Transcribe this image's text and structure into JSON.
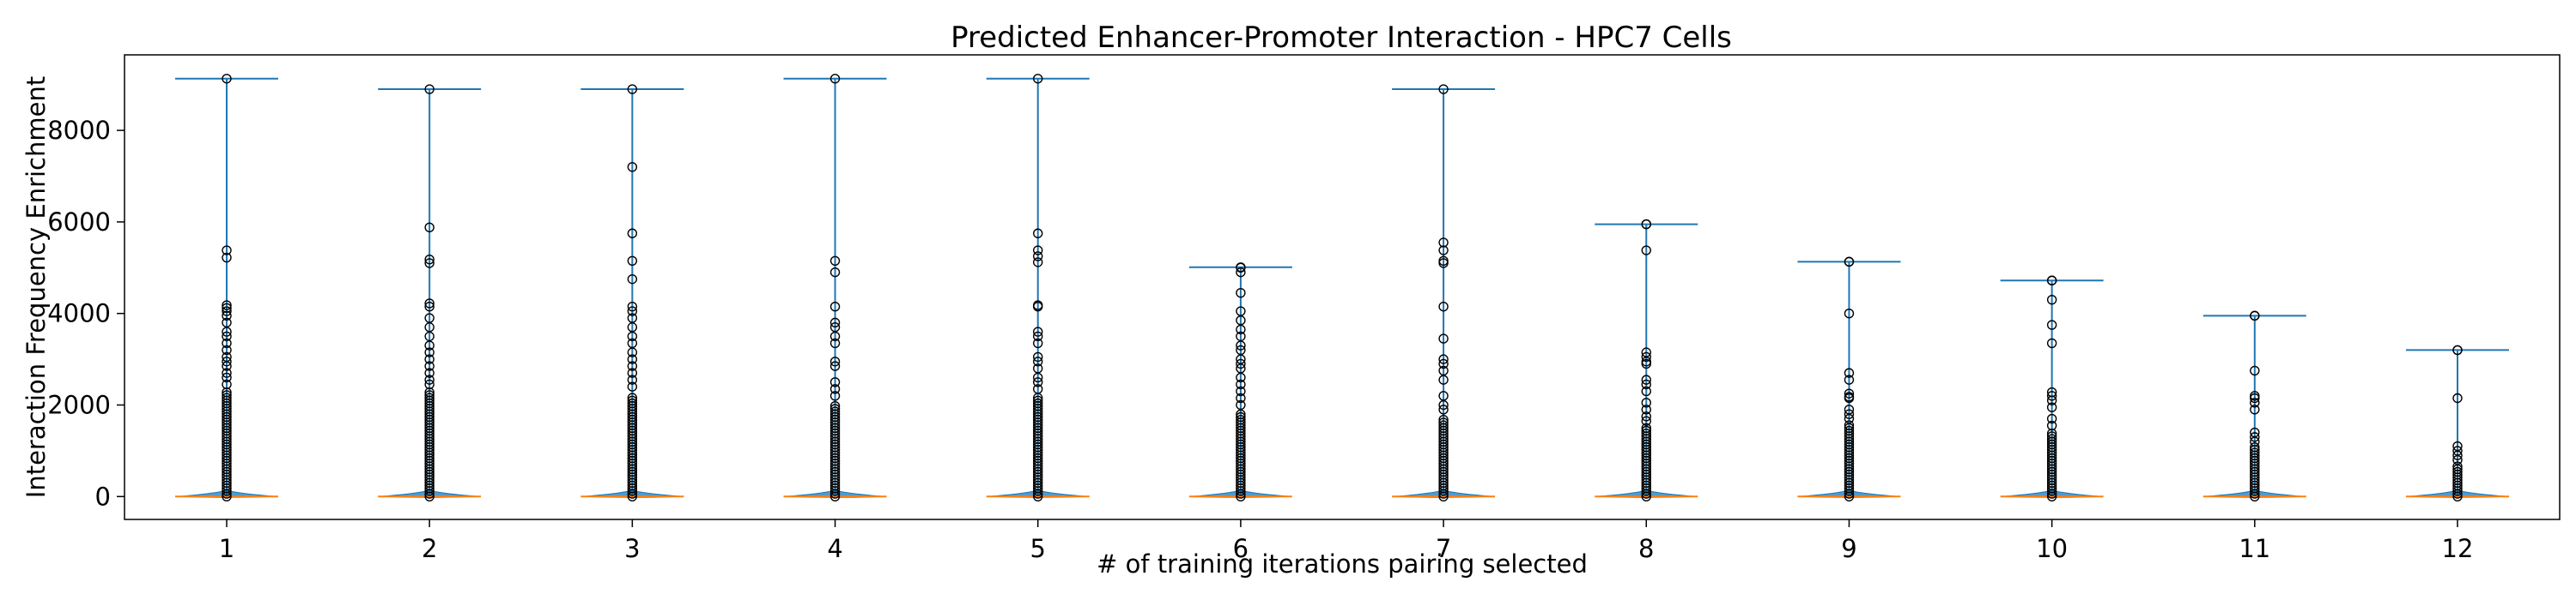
{
  "chart_data": {
    "type": "violin",
    "title": "Predicted Enhancer-Promoter Interaction - HPC7 Cells",
    "xlabel": "# of training iterations pairing selected",
    "ylabel": "Interaction Frequency Enrichment",
    "categories": [
      "1",
      "2",
      "3",
      "4",
      "5",
      "6",
      "7",
      "8",
      "9",
      "10",
      "11",
      "12"
    ],
    "yticks": [
      0,
      2000,
      4000,
      6000,
      8000
    ],
    "ylim": [
      -500,
      9650
    ],
    "grid": false,
    "legend": "none",
    "colors": {
      "violin_body": "#1f77b4",
      "median_line": "#ff7f0e",
      "whisker": "#1f77b4",
      "outlier_edge": "#000000"
    },
    "series": [
      {
        "category": "1",
        "max": 9130,
        "dense_top": 2300,
        "outliers": [
          5380,
          5220,
          4180,
          4120,
          4050,
          3950,
          3800,
          3600,
          3500,
          3350,
          3200,
          3050,
          2950,
          2850,
          2700,
          2600,
          2450
        ]
      },
      {
        "category": "2",
        "max": 8900,
        "dense_top": 2300,
        "outliers": [
          5880,
          5180,
          5100,
          4220,
          4150,
          3900,
          3700,
          3500,
          3300,
          3150,
          3000,
          2850,
          2700,
          2550,
          2450
        ]
      },
      {
        "category": "3",
        "max": 8900,
        "dense_top": 2200,
        "outliers": [
          7200,
          5750,
          5150,
          4750,
          4150,
          4050,
          3900,
          3700,
          3500,
          3350,
          3150,
          3000,
          2850,
          2700,
          2550,
          2400
        ]
      },
      {
        "category": "4",
        "max": 9130,
        "dense_top": 2000,
        "outliers": [
          5150,
          4900,
          4150,
          3800,
          3700,
          3500,
          3350,
          2950,
          2850,
          2500,
          2350,
          2200
        ]
      },
      {
        "category": "5",
        "max": 9130,
        "dense_top": 2200,
        "outliers": [
          5750,
          5380,
          5250,
          5120,
          4180,
          4150,
          3600,
          3500,
          3350,
          3050,
          2950,
          2800,
          2600,
          2500,
          2350
        ]
      },
      {
        "category": "6",
        "max": 5010,
        "dense_top": 1800,
        "outliers": [
          5000,
          4900,
          4450,
          4050,
          3850,
          3650,
          3500,
          3300,
          3200,
          3000,
          2900,
          2800,
          2600,
          2450,
          2300,
          2150,
          2000
        ]
      },
      {
        "category": "7",
        "max": 8900,
        "dense_top": 1700,
        "outliers": [
          5550,
          5380,
          5150,
          5100,
          4150,
          3450,
          3000,
          2900,
          2750,
          2550,
          2200,
          2000,
          1900
        ]
      },
      {
        "category": "8",
        "max": 5950,
        "dense_top": 1500,
        "outliers": [
          5950,
          5380,
          3150,
          3050,
          2950,
          2900,
          2550,
          2450,
          2300,
          2050,
          1900,
          1750,
          1650
        ]
      },
      {
        "category": "9",
        "max": 5130,
        "dense_top": 1600,
        "outliers": [
          5130,
          4000,
          2700,
          2550,
          2250,
          2180,
          2150,
          1900,
          1800,
          1700
        ]
      },
      {
        "category": "10",
        "max": 4720,
        "dense_top": 1400,
        "outliers": [
          4720,
          4300,
          3750,
          3350,
          2280,
          2200,
          2100,
          1950,
          1700,
          1550
        ]
      },
      {
        "category": "11",
        "max": 3950,
        "dense_top": 1100,
        "outliers": [
          3950,
          2750,
          2200,
          2150,
          2050,
          1900,
          1400,
          1300,
          1200
        ]
      },
      {
        "category": "12",
        "max": 3200,
        "dense_top": 700,
        "outliers": [
          3200,
          2150,
          1100,
          1000,
          900,
          800
        ]
      }
    ]
  }
}
